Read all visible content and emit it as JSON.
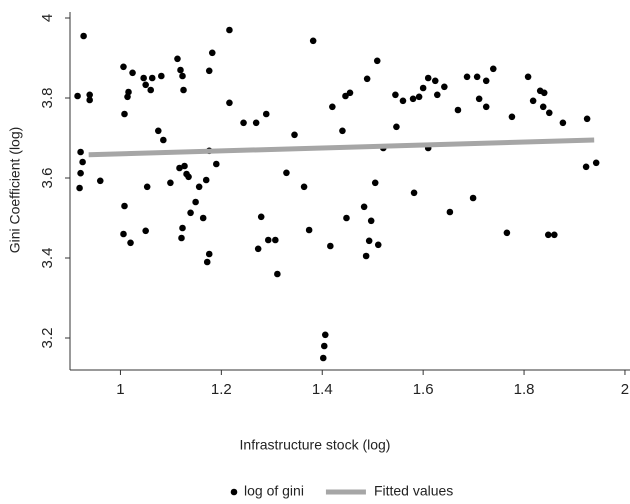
{
  "chart_data": {
    "type": "scatter",
    "x_label": "Infrastructure stock (log)",
    "y_label": "Gini Coefficient (log)",
    "xlim": [
      0.9,
      2.01
    ],
    "ylim": [
      3.12,
      4.015
    ],
    "xticks": [
      1,
      1.2,
      1.4,
      1.6,
      1.8,
      2
    ],
    "yticks": [
      3.2,
      3.4,
      3.6,
      3.8,
      4
    ],
    "series": [
      {
        "name": "log of gini",
        "color": "#000000",
        "style": "points",
        "x": [
          0.915,
          0.927,
          0.921,
          0.925,
          0.921,
          0.919,
          0.939,
          0.939,
          0.96,
          1.006,
          1.008,
          1.014,
          1.016,
          1.024,
          1.008,
          1.006,
          1.02,
          1.046,
          1.05,
          1.06,
          1.063,
          1.081,
          1.075,
          1.085,
          1.053,
          1.05,
          1.099,
          1.113,
          1.119,
          1.123,
          1.125,
          1.117,
          1.127,
          1.131,
          1.135,
          1.123,
          1.121,
          1.139,
          1.149,
          1.156,
          1.164,
          1.17,
          1.172,
          1.176,
          1.176,
          1.176,
          1.182,
          1.19,
          1.216,
          1.216,
          1.244,
          1.269,
          1.289,
          1.273,
          1.279,
          1.293,
          1.307,
          1.311,
          1.329,
          1.345,
          1.364,
          1.374,
          1.382,
          1.402,
          1.404,
          1.406,
          1.416,
          1.42,
          1.44,
          1.446,
          1.455,
          1.448,
          1.483,
          1.487,
          1.489,
          1.493,
          1.497,
          1.505,
          1.509,
          1.511,
          1.521,
          1.545,
          1.547,
          1.56,
          1.58,
          1.582,
          1.592,
          1.6,
          1.61,
          1.61,
          1.624,
          1.628,
          1.642,
          1.653,
          1.669,
          1.687,
          1.699,
          1.707,
          1.711,
          1.725,
          1.725,
          1.739,
          1.766,
          1.776,
          1.808,
          1.818,
          1.832,
          1.84,
          1.838,
          1.85,
          1.848,
          1.86,
          1.877,
          1.925,
          1.923,
          1.943
        ],
        "values": [
          3.805,
          3.955,
          3.665,
          3.64,
          3.612,
          3.575,
          3.808,
          3.795,
          3.593,
          3.878,
          3.76,
          3.803,
          3.815,
          3.863,
          3.53,
          3.46,
          3.438,
          3.85,
          3.833,
          3.82,
          3.85,
          3.855,
          3.718,
          3.695,
          3.578,
          3.468,
          3.588,
          3.898,
          3.87,
          3.855,
          3.82,
          3.625,
          3.63,
          3.61,
          3.603,
          3.475,
          3.45,
          3.513,
          3.54,
          3.578,
          3.5,
          3.595,
          3.39,
          3.41,
          3.668,
          3.868,
          3.913,
          3.635,
          3.97,
          3.788,
          3.738,
          3.738,
          3.76,
          3.423,
          3.503,
          3.445,
          3.445,
          3.36,
          3.613,
          3.708,
          3.578,
          3.47,
          3.943,
          3.15,
          3.18,
          3.208,
          3.43,
          3.778,
          3.718,
          3.805,
          3.813,
          3.5,
          3.528,
          3.405,
          3.848,
          3.443,
          3.493,
          3.588,
          3.893,
          3.433,
          3.675,
          3.808,
          3.728,
          3.793,
          3.798,
          3.563,
          3.803,
          3.825,
          3.85,
          3.675,
          3.843,
          3.808,
          3.828,
          3.515,
          3.77,
          3.853,
          3.55,
          3.853,
          3.798,
          3.778,
          3.843,
          3.873,
          3.463,
          3.753,
          3.853,
          3.793,
          3.818,
          3.813,
          3.778,
          3.763,
          3.458,
          3.458,
          3.738,
          3.748,
          3.628,
          3.638
        ]
      },
      {
        "name": "Fitted values",
        "color": "#a6a6a6",
        "style": "line",
        "x": [
          0.937,
          1.939
        ],
        "values": [
          3.658,
          3.695
        ]
      }
    ]
  }
}
